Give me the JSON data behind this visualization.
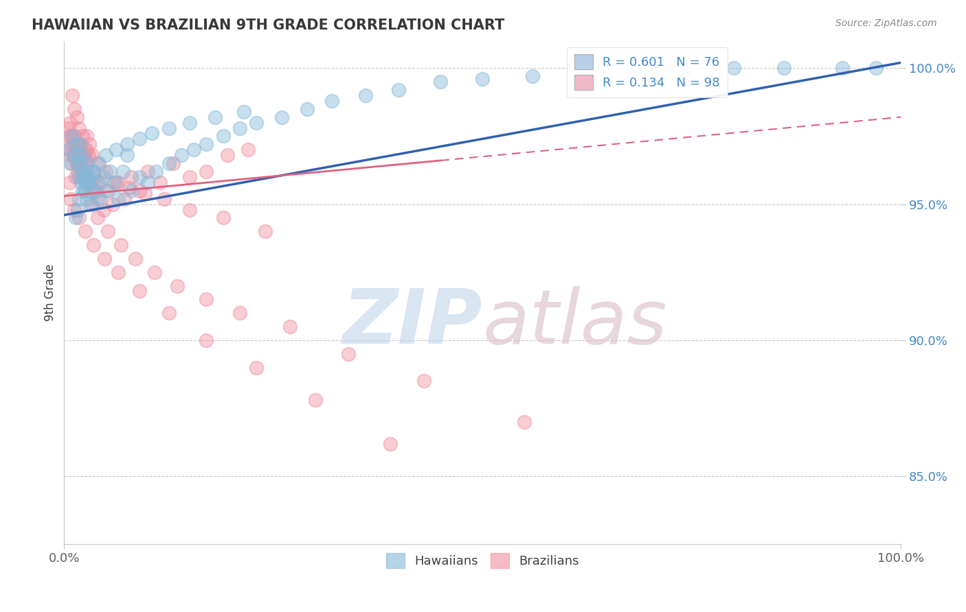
{
  "title": "HAWAIIAN VS BRAZILIAN 9TH GRADE CORRELATION CHART",
  "source": "Source: ZipAtlas.com",
  "ylabel": "9th Grade",
  "xlim": [
    0.0,
    1.0
  ],
  "ylim": [
    0.825,
    1.01
  ],
  "ytick_positions": [
    0.85,
    0.9,
    0.95,
    1.0
  ],
  "ytick_labels": [
    "85.0%",
    "90.0%",
    "95.0%",
    "100.0%"
  ],
  "xtick_positions": [
    0.0,
    1.0
  ],
  "xtick_labels": [
    "0.0%",
    "100.0%"
  ],
  "legend_items": [
    {
      "label": "R = 0.601   N = 76",
      "color": "#b8d0e8"
    },
    {
      "label": "R = 0.134   N = 98",
      "color": "#f0b8c8"
    }
  ],
  "hawaii_color": "#85b8d8",
  "brazil_color": "#f090a0",
  "hawaii_line_color": "#3060b0",
  "brazil_line_color": "#e06080",
  "background_color": "#ffffff",
  "grid_color": "#c8c8c8",
  "title_color": "#383838",
  "source_color": "#888888",
  "ylabel_color": "#404040",
  "tick_color_y": "#4488cc",
  "tick_color_x": "#606060",
  "watermark_zip_color": "#c0d4e8",
  "watermark_atlas_color": "#d8bcc8",
  "hawaii_line_x0": 0.0,
  "hawaii_line_y0": 0.946,
  "hawaii_line_x1": 1.0,
  "hawaii_line_y1": 1.002,
  "brazil_line_x0": 0.0,
  "brazil_line_y0": 0.953,
  "brazil_line_x1": 1.0,
  "brazil_line_y1": 0.982,
  "hawaii_x": [
    0.005,
    0.007,
    0.01,
    0.012,
    0.015,
    0.015,
    0.017,
    0.018,
    0.019,
    0.02,
    0.02,
    0.021,
    0.022,
    0.023,
    0.024,
    0.025,
    0.026,
    0.027,
    0.028,
    0.029,
    0.03,
    0.032,
    0.033,
    0.035,
    0.037,
    0.04,
    0.043,
    0.047,
    0.05,
    0.055,
    0.06,
    0.065,
    0.07,
    0.075,
    0.08,
    0.09,
    0.1,
    0.11,
    0.125,
    0.14,
    0.155,
    0.17,
    0.19,
    0.21,
    0.23,
    0.26,
    0.29,
    0.32,
    0.36,
    0.4,
    0.45,
    0.5,
    0.56,
    0.62,
    0.68,
    0.74,
    0.8,
    0.86,
    0.93,
    0.97,
    0.014,
    0.016,
    0.018,
    0.022,
    0.028,
    0.035,
    0.042,
    0.05,
    0.062,
    0.075,
    0.09,
    0.105,
    0.125,
    0.15,
    0.18,
    0.215
  ],
  "hawaii_y": [
    0.97,
    0.965,
    0.975,
    0.968,
    0.972,
    0.965,
    0.96,
    0.968,
    0.972,
    0.965,
    0.958,
    0.962,
    0.968,
    0.96,
    0.955,
    0.962,
    0.958,
    0.952,
    0.965,
    0.958,
    0.96,
    0.955,
    0.95,
    0.962,
    0.955,
    0.958,
    0.952,
    0.96,
    0.955,
    0.962,
    0.958,
    0.952,
    0.962,
    0.968,
    0.955,
    0.96,
    0.958,
    0.962,
    0.965,
    0.968,
    0.97,
    0.972,
    0.975,
    0.978,
    0.98,
    0.982,
    0.985,
    0.988,
    0.99,
    0.992,
    0.995,
    0.996,
    0.997,
    0.998,
    0.999,
    0.999,
    1.0,
    1.0,
    1.0,
    1.0,
    0.945,
    0.948,
    0.952,
    0.955,
    0.96,
    0.962,
    0.965,
    0.968,
    0.97,
    0.972,
    0.974,
    0.976,
    0.978,
    0.98,
    0.982,
    0.984
  ],
  "brazil_x": [
    0.005,
    0.006,
    0.007,
    0.008,
    0.009,
    0.01,
    0.011,
    0.012,
    0.013,
    0.014,
    0.015,
    0.016,
    0.017,
    0.018,
    0.019,
    0.02,
    0.021,
    0.022,
    0.023,
    0.024,
    0.025,
    0.026,
    0.027,
    0.028,
    0.029,
    0.03,
    0.032,
    0.034,
    0.036,
    0.038,
    0.04,
    0.043,
    0.047,
    0.052,
    0.058,
    0.065,
    0.072,
    0.08,
    0.09,
    0.1,
    0.115,
    0.13,
    0.15,
    0.17,
    0.195,
    0.22,
    0.01,
    0.012,
    0.015,
    0.018,
    0.022,
    0.027,
    0.033,
    0.04,
    0.05,
    0.062,
    0.078,
    0.097,
    0.12,
    0.15,
    0.19,
    0.24,
    0.007,
    0.009,
    0.011,
    0.013,
    0.016,
    0.02,
    0.025,
    0.032,
    0.04,
    0.052,
    0.068,
    0.085,
    0.108,
    0.135,
    0.17,
    0.21,
    0.27,
    0.34,
    0.43,
    0.55,
    0.006,
    0.008,
    0.012,
    0.018,
    0.025,
    0.035,
    0.048,
    0.065,
    0.09,
    0.125,
    0.17,
    0.23,
    0.3,
    0.39
  ],
  "brazil_y": [
    0.978,
    0.975,
    0.97,
    0.968,
    0.972,
    0.965,
    0.968,
    0.975,
    0.97,
    0.96,
    0.965,
    0.962,
    0.968,
    0.972,
    0.965,
    0.968,
    0.97,
    0.962,
    0.965,
    0.97,
    0.968,
    0.962,
    0.975,
    0.965,
    0.968,
    0.972,
    0.958,
    0.955,
    0.96,
    0.955,
    0.952,
    0.958,
    0.948,
    0.955,
    0.95,
    0.958,
    0.952,
    0.96,
    0.955,
    0.962,
    0.958,
    0.965,
    0.96,
    0.962,
    0.968,
    0.97,
    0.99,
    0.985,
    0.982,
    0.978,
    0.975,
    0.97,
    0.968,
    0.965,
    0.962,
    0.958,
    0.956,
    0.954,
    0.952,
    0.948,
    0.945,
    0.94,
    0.98,
    0.975,
    0.972,
    0.968,
    0.965,
    0.96,
    0.955,
    0.95,
    0.945,
    0.94,
    0.935,
    0.93,
    0.925,
    0.92,
    0.915,
    0.91,
    0.905,
    0.895,
    0.885,
    0.87,
    0.958,
    0.952,
    0.948,
    0.945,
    0.94,
    0.935,
    0.93,
    0.925,
    0.918,
    0.91,
    0.9,
    0.89,
    0.878,
    0.862
  ]
}
